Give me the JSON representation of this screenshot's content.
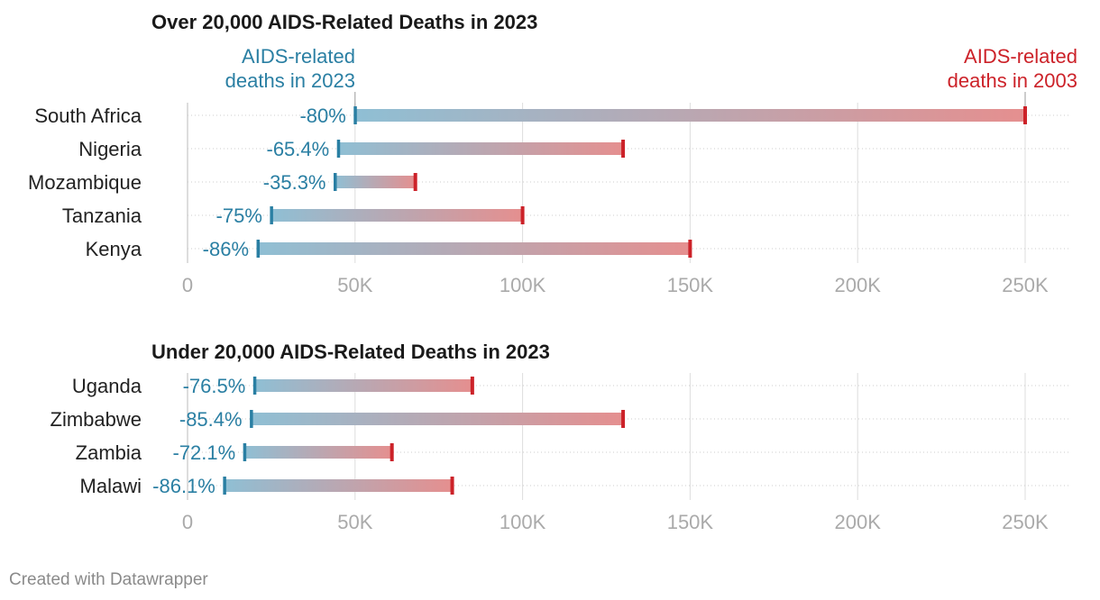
{
  "colors": {
    "deaths_2023": "#2a7fa3",
    "deaths_2003": "#cc2229",
    "bar_start": "#8fbfd4",
    "bar_end": "#e58f8f",
    "grid": "#dddddd",
    "tick_text": "#aaaaaa"
  },
  "annotations": {
    "deaths_2023": "AIDS-related deaths in 2023",
    "deaths_2023_lines": [
      "AIDS-related",
      "deaths in 2023"
    ],
    "deaths_2003": "AIDS-related deaths in 2003",
    "deaths_2003_lines": [
      "AIDS-related",
      "deaths in 2003"
    ]
  },
  "footer": "Created with Datawrapper",
  "chart_data": [
    {
      "type": "range-bar",
      "title": "Over 20,000 AIDS-Related Deaths in 2023",
      "xlim": [
        0,
        250000
      ],
      "xticks": [
        0,
        50000,
        100000,
        150000,
        200000,
        250000
      ],
      "xtick_labels": [
        "0",
        "50K",
        "100K",
        "150K",
        "200K",
        "250K"
      ],
      "series": [
        {
          "name": "AIDS-related deaths in 2023"
        },
        {
          "name": "AIDS-related deaths in 2003"
        }
      ],
      "rows": [
        {
          "country": "South Africa",
          "deaths_2023": 50000,
          "deaths_2003": 250000,
          "change": "-80%"
        },
        {
          "country": "Nigeria",
          "deaths_2023": 45000,
          "deaths_2003": 130000,
          "change": "-65.4%"
        },
        {
          "country": "Mozambique",
          "deaths_2023": 44000,
          "deaths_2003": 68000,
          "change": "-35.3%"
        },
        {
          "country": "Tanzania",
          "deaths_2023": 25000,
          "deaths_2003": 100000,
          "change": "-75%"
        },
        {
          "country": "Kenya",
          "deaths_2023": 21000,
          "deaths_2003": 150000,
          "change": "-86%"
        }
      ]
    },
    {
      "type": "range-bar",
      "title": "Under 20,000 AIDS-Related Deaths in 2023",
      "xlim": [
        0,
        250000
      ],
      "xticks": [
        0,
        50000,
        100000,
        150000,
        200000,
        250000
      ],
      "xtick_labels": [
        "0",
        "50K",
        "100K",
        "150K",
        "200K",
        "250K"
      ],
      "series": [
        {
          "name": "AIDS-related deaths in 2023"
        },
        {
          "name": "AIDS-related deaths in 2003"
        }
      ],
      "rows": [
        {
          "country": "Uganda",
          "deaths_2023": 20000,
          "deaths_2003": 85000,
          "change": "-76.5%"
        },
        {
          "country": "Zimbabwe",
          "deaths_2023": 19000,
          "deaths_2003": 130000,
          "change": "-85.4%"
        },
        {
          "country": "Zambia",
          "deaths_2023": 17000,
          "deaths_2003": 61000,
          "change": "-72.1%"
        },
        {
          "country": "Malawi",
          "deaths_2023": 11000,
          "deaths_2003": 79000,
          "change": "-86.1%"
        }
      ]
    }
  ]
}
